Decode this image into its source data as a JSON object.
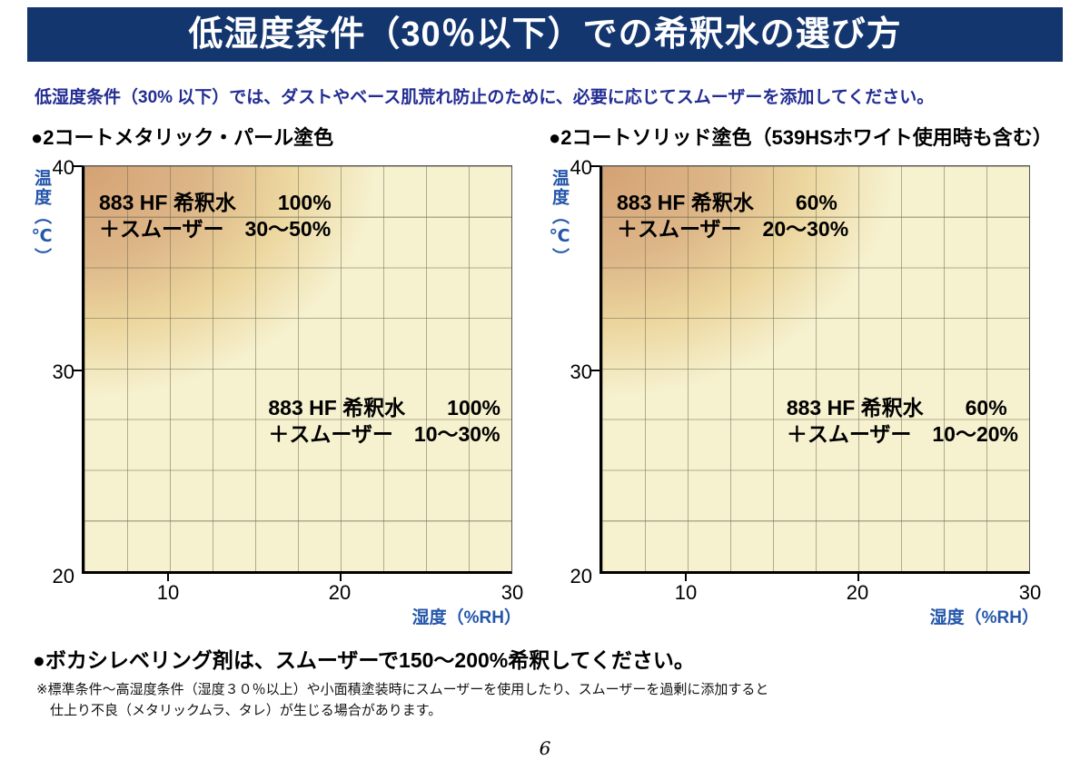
{
  "page": {
    "title": "低湿度条件（30％以下）での希釈水の選び方",
    "intro": "低湿度条件（30% 以下）では、ダストやベース肌荒れ防止のために、必要に応じてスムーザーを添加してください。",
    "footer_bullet": "●ボカシレベリング剤は、スムーザーで150〜200%希釈してください。",
    "footnote_line1": "※標準条件〜高湿度条件（湿度３０％以上）や小面積塗装時にスムーザーを使用したり、スムーザーを過剰に添加すると",
    "footnote_line2": "仕上り不良（メタリックムラ、タレ）が生じる場合があります。",
    "page_number": "6"
  },
  "colors": {
    "banner_bg": "#14366f",
    "intro_text": "#232d92",
    "axis_title_blue": "#2456aa",
    "plot_bg_cream": "#f6f1cf",
    "plot_gradient_tan": "#d4a274"
  },
  "charts": [
    {
      "heading": "●2コートメタリック・パール塗色",
      "y_axis_title": "温度（℃）",
      "x_axis_title": "湿度（%RH）",
      "y_ticks": [
        "40",
        "30",
        "20"
      ],
      "x_ticks": [
        "10",
        "20",
        "30"
      ],
      "upper": {
        "line1": "883 HF 希釈水　　100%",
        "line2": "＋スムーザー　30〜50%"
      },
      "lower": {
        "line1": "883 HF 希釈水　　100%",
        "line2": "＋スムーザー　10〜30%"
      }
    },
    {
      "heading": "●2コートソリッド塗色（539HSホワイト使用時も含む）",
      "y_axis_title": "温度（℃）",
      "x_axis_title": "湿度（%RH）",
      "y_ticks": [
        "40",
        "30",
        "20"
      ],
      "x_ticks": [
        "10",
        "20",
        "30"
      ],
      "upper": {
        "line1": "883 HF 希釈水　　60%",
        "line2": "＋スムーザー　20〜30%"
      },
      "lower": {
        "line1": "883 HF 希釈水　　60%",
        "line2": "＋スムーザー　10〜20%"
      }
    }
  ],
  "chart_data": [
    {
      "type": "area",
      "title": "2コートメタリック・パール塗色",
      "xlabel": "湿度（%RH）",
      "ylabel": "温度（℃）",
      "xlim": [
        5,
        30
      ],
      "ylim": [
        20,
        40
      ],
      "x_ticks": [
        10,
        20,
        30
      ],
      "y_ticks": [
        20,
        30,
        40
      ],
      "grid": true,
      "regions": [
        {
          "zone": "upper-left gradient (low humidity / high temperature)",
          "recipe": "883 HF 希釈水 100% ＋スムーザー 30〜50%"
        },
        {
          "zone": "remaining area",
          "recipe": "883 HF 希釈水 100% ＋スムーザー 10〜30%"
        }
      ]
    },
    {
      "type": "area",
      "title": "2コートソリッド塗色（539HSホワイト使用時も含む）",
      "xlabel": "湿度（%RH）",
      "ylabel": "温度（℃）",
      "xlim": [
        5,
        30
      ],
      "ylim": [
        20,
        40
      ],
      "x_ticks": [
        10,
        20,
        30
      ],
      "y_ticks": [
        20,
        30,
        40
      ],
      "grid": true,
      "regions": [
        {
          "zone": "upper-left gradient (low humidity / high temperature)",
          "recipe": "883 HF 希釈水 60% ＋スムーザー 20〜30%"
        },
        {
          "zone": "remaining area",
          "recipe": "883 HF 希釈水 60% ＋スムーザー 10〜20%"
        }
      ]
    }
  ]
}
